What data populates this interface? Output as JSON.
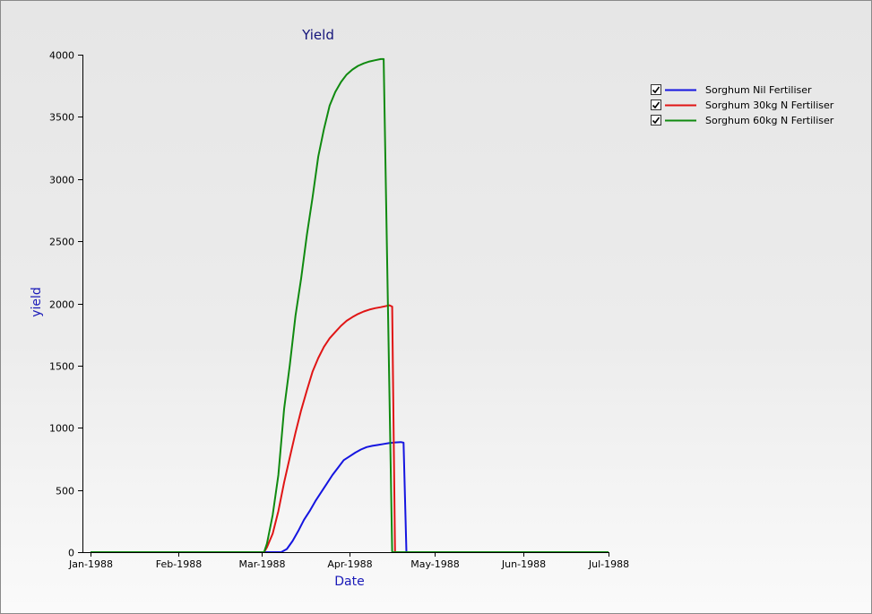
{
  "chart_data": {
    "type": "line",
    "title": "Yield",
    "xlabel": "Date",
    "ylabel": "yield",
    "x_axis_type": "date",
    "xlim": [
      "1988-01-01",
      "1988-07-01"
    ],
    "ylim": [
      0,
      4000
    ],
    "x_ticks": [
      {
        "date": "1988-01-01",
        "label": "Jan-1988"
      },
      {
        "date": "1988-02-01",
        "label": "Feb-1988"
      },
      {
        "date": "1988-03-01",
        "label": "Mar-1988"
      },
      {
        "date": "1988-04-01",
        "label": "Apr-1988"
      },
      {
        "date": "1988-05-01",
        "label": "May-1988"
      },
      {
        "date": "1988-06-01",
        "label": "Jun-1988"
      },
      {
        "date": "1988-07-01",
        "label": "Jul-1988"
      }
    ],
    "y_ticks": [
      0,
      500,
      1000,
      1500,
      2000,
      2500,
      3000,
      3500,
      4000
    ],
    "grid": false,
    "legend_position": "top-right",
    "series": [
      {
        "name": "Sorghum Nil Fertiliser",
        "color": "#1515e0",
        "checked": true,
        "points": [
          [
            "1988-01-01",
            0
          ],
          [
            "1988-03-08",
            0
          ],
          [
            "1988-03-10",
            25
          ],
          [
            "1988-03-12",
            90
          ],
          [
            "1988-03-14",
            170
          ],
          [
            "1988-03-16",
            260
          ],
          [
            "1988-03-18",
            330
          ],
          [
            "1988-03-20",
            410
          ],
          [
            "1988-03-22",
            480
          ],
          [
            "1988-03-24",
            550
          ],
          [
            "1988-03-26",
            620
          ],
          [
            "1988-03-28",
            680
          ],
          [
            "1988-03-30",
            740
          ],
          [
            "1988-04-01",
            770
          ],
          [
            "1988-04-03",
            800
          ],
          [
            "1988-04-05",
            825
          ],
          [
            "1988-04-07",
            845
          ],
          [
            "1988-04-09",
            855
          ],
          [
            "1988-04-11",
            862
          ],
          [
            "1988-04-13",
            870
          ],
          [
            "1988-04-15",
            877
          ],
          [
            "1988-04-17",
            882
          ],
          [
            "1988-04-19",
            885
          ],
          [
            "1988-04-20",
            880
          ],
          [
            "1988-04-21",
            0
          ],
          [
            "1988-07-01",
            0
          ]
        ]
      },
      {
        "name": "Sorghum 30kg N Fertiliser",
        "color": "#e01515",
        "checked": true,
        "points": [
          [
            "1988-01-01",
            0
          ],
          [
            "1988-03-02",
            0
          ],
          [
            "1988-03-03",
            40
          ],
          [
            "1988-03-05",
            150
          ],
          [
            "1988-03-07",
            330
          ],
          [
            "1988-03-09",
            560
          ],
          [
            "1988-03-11",
            760
          ],
          [
            "1988-03-13",
            960
          ],
          [
            "1988-03-15",
            1140
          ],
          [
            "1988-03-17",
            1300
          ],
          [
            "1988-03-19",
            1450
          ],
          [
            "1988-03-21",
            1560
          ],
          [
            "1988-03-23",
            1650
          ],
          [
            "1988-03-25",
            1720
          ],
          [
            "1988-03-27",
            1770
          ],
          [
            "1988-03-29",
            1820
          ],
          [
            "1988-03-31",
            1860
          ],
          [
            "1988-04-02",
            1890
          ],
          [
            "1988-04-04",
            1915
          ],
          [
            "1988-04-06",
            1935
          ],
          [
            "1988-04-08",
            1950
          ],
          [
            "1988-04-10",
            1962
          ],
          [
            "1988-04-12",
            1970
          ],
          [
            "1988-04-14",
            1980
          ],
          [
            "1988-04-15",
            1985
          ],
          [
            "1988-04-16",
            1975
          ],
          [
            "1988-04-17",
            0
          ],
          [
            "1988-07-01",
            0
          ]
        ]
      },
      {
        "name": "Sorghum 60kg N Fertiliser",
        "color": "#108a10",
        "checked": true,
        "points": [
          [
            "1988-01-01",
            0
          ],
          [
            "1988-03-02",
            0
          ],
          [
            "1988-03-03",
            70
          ],
          [
            "1988-03-05",
            300
          ],
          [
            "1988-03-07",
            620
          ],
          [
            "1988-03-09",
            1150
          ],
          [
            "1988-03-11",
            1500
          ],
          [
            "1988-03-13",
            1900
          ],
          [
            "1988-03-15",
            2200
          ],
          [
            "1988-03-17",
            2550
          ],
          [
            "1988-03-19",
            2850
          ],
          [
            "1988-03-21",
            3180
          ],
          [
            "1988-03-23",
            3400
          ],
          [
            "1988-03-25",
            3590
          ],
          [
            "1988-03-27",
            3700
          ],
          [
            "1988-03-29",
            3780
          ],
          [
            "1988-03-31",
            3840
          ],
          [
            "1988-04-02",
            3880
          ],
          [
            "1988-04-04",
            3910
          ],
          [
            "1988-04-06",
            3930
          ],
          [
            "1988-04-08",
            3945
          ],
          [
            "1988-04-10",
            3955
          ],
          [
            "1988-04-12",
            3965
          ],
          [
            "1988-04-13",
            3965
          ],
          [
            "1988-04-16",
            0
          ],
          [
            "1988-07-01",
            0
          ]
        ]
      }
    ]
  }
}
